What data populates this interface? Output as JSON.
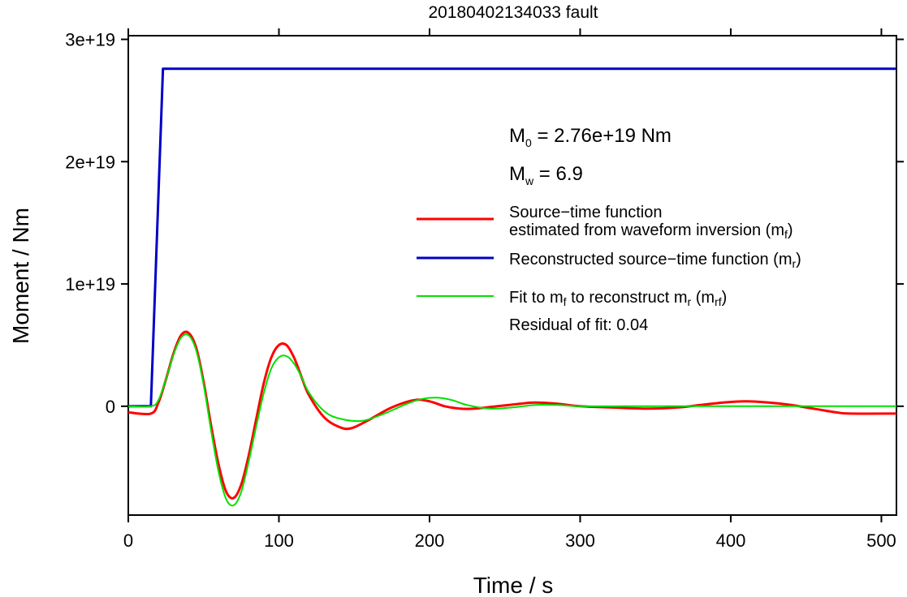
{
  "chart_data": {
    "type": "line",
    "title": "20180402134033 fault",
    "xlabel": "Time / s",
    "ylabel": "Moment / Nm",
    "xlim": [
      0,
      510
    ],
    "ylim": [
      -8.9e+18,
      3.03e+19
    ],
    "x_ticks": [
      0,
      100,
      200,
      300,
      400,
      500
    ],
    "x_tick_labels": [
      "0",
      "100",
      "200",
      "300",
      "400",
      "500"
    ],
    "y_ticks": [
      0,
      1e+19,
      2e+19,
      3e+19
    ],
    "y_tick_labels": [
      "0",
      "1e+19",
      "2e+19",
      "3e+19"
    ],
    "grid": false,
    "legend_position": "right",
    "annotations": {
      "m0_prefix": "M",
      "m0_sub": "0",
      "m0_text": " = 2.76e+19 Nm",
      "mw_prefix": "M",
      "mw_sub": "w",
      "mw_text": " = 6.9",
      "residual": "Residual of fit: 0.04"
    },
    "legend": {
      "red_line1": "Source−time function",
      "red_line2_text": "estimated from waveform inversion (m",
      "red_line2_sub": "f",
      "red_line2_end": ")",
      "blue_text": "Reconstructed source−time function (m",
      "blue_sub": "r",
      "blue_end": ")",
      "green_text1": "Fit to m",
      "green_sub1": "f",
      "green_text2": " to reconstruct m",
      "green_sub2": "r",
      "green_text3": " (m",
      "green_sub3": "rf",
      "green_end": ")"
    },
    "series": [
      {
        "color": "#ff0000",
        "x": [
          0,
          15,
          20,
          25,
          30,
          35,
          40,
          45,
          50,
          55,
          60,
          65,
          70,
          75,
          80,
          85,
          90,
          95,
          100,
          105,
          110,
          115,
          120,
          130,
          140,
          148,
          160,
          175,
          190,
          200,
          210,
          220,
          230,
          245,
          260,
          270,
          285,
          300,
          320,
          345,
          365,
          380,
          395,
          410,
          425,
          440,
          455,
          470,
          480,
          510
        ],
        "y": [
          -5e+17,
          -6e+17,
          3e+17,
          2.2e+18,
          4.3e+18,
          5.8e+18,
          6e+18,
          4.8e+18,
          2e+18,
          -1.6e+18,
          -4.8e+18,
          -7e+18,
          -7.5e+18,
          -6.4e+18,
          -4e+18,
          -1e+18,
          1.9e+18,
          4e+18,
          5e+18,
          5e+18,
          4e+18,
          2.4e+18,
          9e+17,
          -9e+17,
          -1.7e+18,
          -1.8e+18,
          -1.1e+18,
          -1e+17,
          5e+17,
          4e+17,
          0,
          -2e+17,
          -2e+17,
          0,
          2e+17,
          3e+17,
          2e+17,
          0,
          -1e+17,
          -2e+17,
          -1e+17,
          1e+17,
          3e+17,
          4e+17,
          3e+17,
          1e+17,
          -2e+17,
          -5e+17,
          -6e+17,
          -6e+17
        ]
      },
      {
        "color": "#0000c8",
        "x": [
          0,
          15,
          23,
          510
        ],
        "y": [
          0,
          0,
          2.76e+19,
          2.76e+19
        ]
      },
      {
        "color": "#00e000",
        "x": [
          0,
          15,
          20,
          25,
          30,
          35,
          40,
          45,
          50,
          55,
          60,
          65,
          70,
          75,
          80,
          85,
          90,
          95,
          100,
          105,
          110,
          115,
          120,
          130,
          140,
          155,
          170,
          185,
          195,
          205,
          215,
          225,
          240,
          255,
          270,
          285,
          300,
          330,
          360,
          400,
          440,
          470,
          510
        ],
        "y": [
          0,
          0,
          5e+17,
          2.2e+18,
          4.2e+18,
          5.6e+18,
          5.8e+18,
          4.6e+18,
          1.8e+18,
          -2e+18,
          -5.4e+18,
          -7.6e+18,
          -8.1e+18,
          -7e+18,
          -4.5e+18,
          -1.6e+18,
          1.1e+18,
          3.1e+18,
          4e+18,
          4.1e+18,
          3.5e+18,
          2.4e+18,
          1.1e+18,
          -4e+17,
          -1e+18,
          -1.2e+18,
          -6e+17,
          2e+17,
          6e+17,
          7e+17,
          5e+17,
          1e+17,
          -2e+17,
          -1e+17,
          1e+17,
          1e+17,
          0,
          0,
          0,
          0,
          0,
          0,
          0
        ]
      }
    ]
  }
}
